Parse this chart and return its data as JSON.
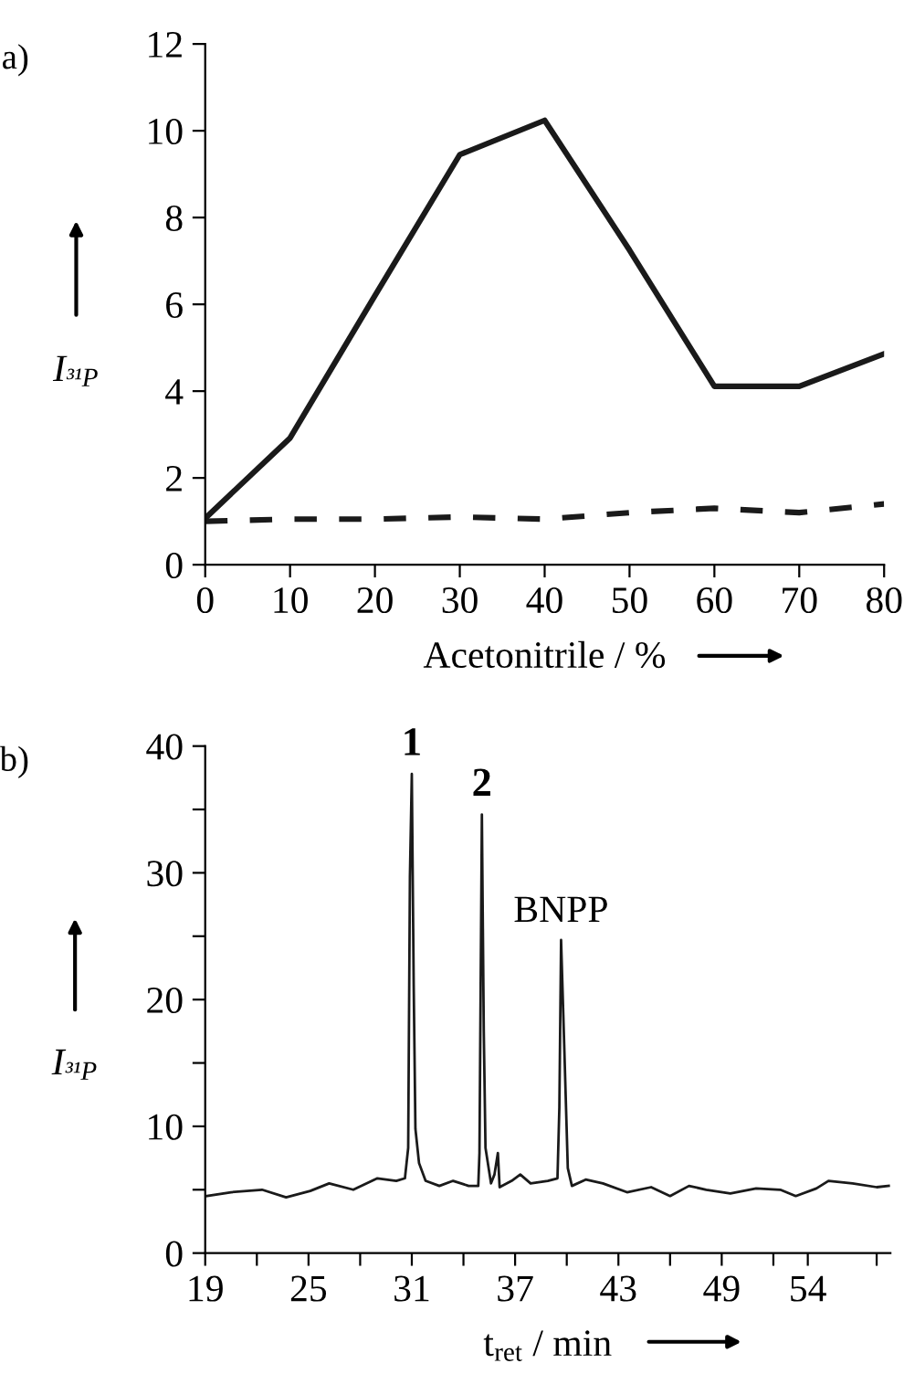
{
  "chart_data": [
    {
      "type": "line",
      "title": "a)",
      "xlabel": "Acetonitrile / %",
      "ylabel": "I$_{³¹P}$",
      "x": [
        0,
        10,
        20,
        30,
        40,
        50,
        60,
        70,
        80
      ],
      "series": [
        {
          "color": "#1a1a1a",
          "line_style": "solid",
          "values": [
            1.07,
            2.92,
            6.2,
            9.45,
            10.24,
            7.25,
            4.11,
            4.11,
            4.86
          ]
        },
        {
          "color": "#1a1a1a",
          "line_style": "dashed",
          "values": [
            1.0,
            1.05,
            1.05,
            1.1,
            1.05,
            1.2,
            1.3,
            1.2,
            1.4
          ]
        }
      ],
      "xlim": [
        0,
        80
      ],
      "ylim": [
        0,
        12
      ],
      "xticks": [
        0,
        10,
        20,
        30,
        40,
        50,
        60,
        70,
        80
      ],
      "yticks": [
        0,
        2,
        4,
        6,
        8,
        10,
        12
      ],
      "grid": false,
      "legend": false
    },
    {
      "type": "line",
      "title": "b)",
      "xlabel": "t$_{ret}$ / min",
      "ylabel": "I$_{³¹P}$",
      "x": [
        19.1,
        20.5,
        22.3,
        23.7,
        25.1,
        26.2,
        27.6,
        29.0,
        30.1,
        30.6,
        30.79,
        30.89,
        31.0,
        31.11,
        31.21,
        31.42,
        31.8,
        32.6,
        33.4,
        34.3,
        34.86,
        34.93,
        35.07,
        35.18,
        35.28,
        35.6,
        35.8,
        36.0,
        36.1,
        36.8,
        37.3,
        37.9,
        38.9,
        39.46,
        39.57,
        39.67,
        39.85,
        40.06,
        40.3,
        41.1,
        42.1,
        43.5,
        44.9,
        46.0,
        47.1,
        48.1,
        49.5,
        51.0,
        52.4,
        53.3,
        54.5,
        55.2,
        56.6,
        58.0,
        58.7
      ],
      "series": [
        {
          "color": "#1a1a1a",
          "line_style": "solid",
          "values": [
            4.5,
            4.8,
            5.0,
            4.4,
            4.9,
            5.5,
            5.0,
            5.9,
            5.7,
            5.9,
            8.3,
            29.7,
            37.8,
            21.1,
            9.8,
            7.1,
            5.7,
            5.3,
            5.7,
            5.3,
            5.3,
            7.9,
            34.6,
            17.5,
            8.3,
            5.5,
            6.2,
            7.9,
            5.2,
            5.7,
            6.2,
            5.5,
            5.7,
            5.9,
            11.5,
            24.7,
            16.5,
            6.7,
            5.3,
            5.8,
            5.5,
            4.8,
            5.2,
            4.5,
            5.3,
            5.0,
            4.7,
            5.1,
            5.0,
            4.5,
            5.1,
            5.7,
            5.5,
            5.2,
            5.3
          ]
        }
      ],
      "annotations": [
        {
          "text": "1",
          "x": 31.0,
          "y": 37.8
        },
        {
          "text": "2",
          "x": 35.07,
          "y": 34.6
        },
        {
          "text": "BNPP",
          "x": 39.67,
          "y": 24.7
        }
      ],
      "xlim": [
        19,
        58.8
      ],
      "ylim": [
        0,
        40
      ],
      "xticks": [
        19,
        {
          "value": 22,
          "label": null
        },
        25,
        {
          "value": 28,
          "label": null
        },
        31,
        {
          "value": 34,
          "label": null
        },
        37,
        {
          "value": 40,
          "label": null
        },
        43,
        {
          "value": 46,
          "label": null
        },
        49,
        {
          "value": 52,
          "label": null
        },
        54,
        {
          "value": 58,
          "label": null
        }
      ],
      "yticks": [
        0,
        {
          "value": 5,
          "label": null
        },
        10,
        {
          "value": 15,
          "label": null
        },
        20,
        {
          "value": 25,
          "label": null
        },
        30,
        {
          "value": 35,
          "label": null
        },
        40
      ],
      "grid": false,
      "legend": false
    }
  ]
}
